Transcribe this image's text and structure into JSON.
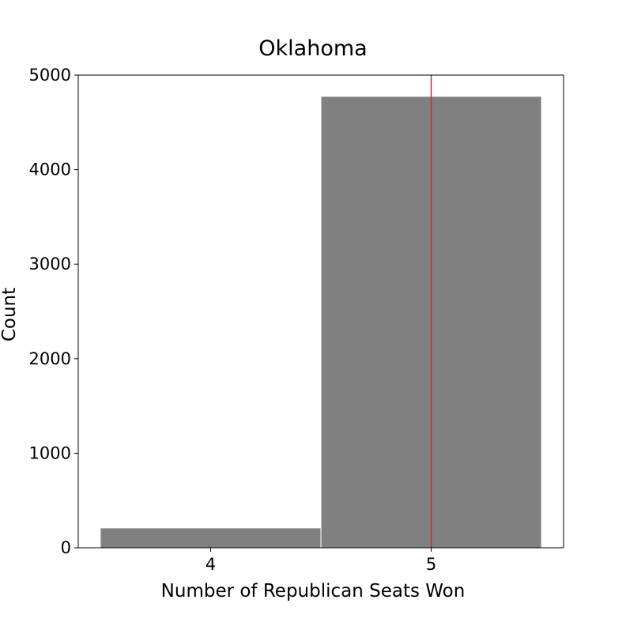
{
  "chart_data": {
    "type": "bar",
    "title": "Oklahoma",
    "xlabel": "Number of Republican Seats Won",
    "ylabel": "Count",
    "categories": [
      "4",
      "5"
    ],
    "values": [
      210,
      4775
    ],
    "ylim": [
      0,
      5000
    ],
    "yticks": [
      0,
      1000,
      2000,
      3000,
      4000,
      5000
    ],
    "ytick_labels": [
      "0",
      "1000",
      "2000",
      "3000",
      "4000",
      "5000"
    ],
    "xticks": [
      4,
      5
    ],
    "xtick_labels": [
      "4",
      "5"
    ],
    "xlim": [
      3.4,
      5.6
    ],
    "bar_color": "#808080",
    "reference_line": {
      "x": 5,
      "color": "#d62728"
    },
    "grid": false,
    "legend": "none"
  }
}
